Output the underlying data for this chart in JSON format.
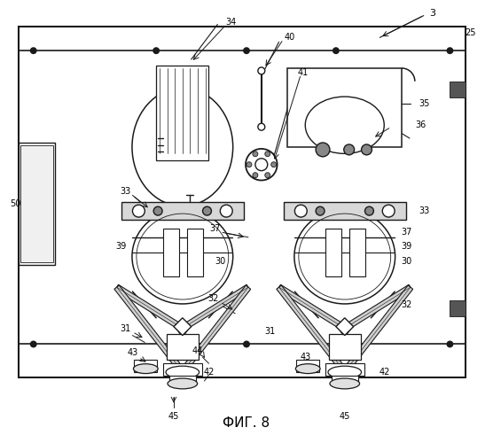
{
  "title": "ФИГ. 8",
  "title_fontsize": 11,
  "bg_color": "#ffffff",
  "line_color": "#1a1a1a",
  "fig_width": 5.56,
  "fig_height": 5.0,
  "dpi": 100
}
